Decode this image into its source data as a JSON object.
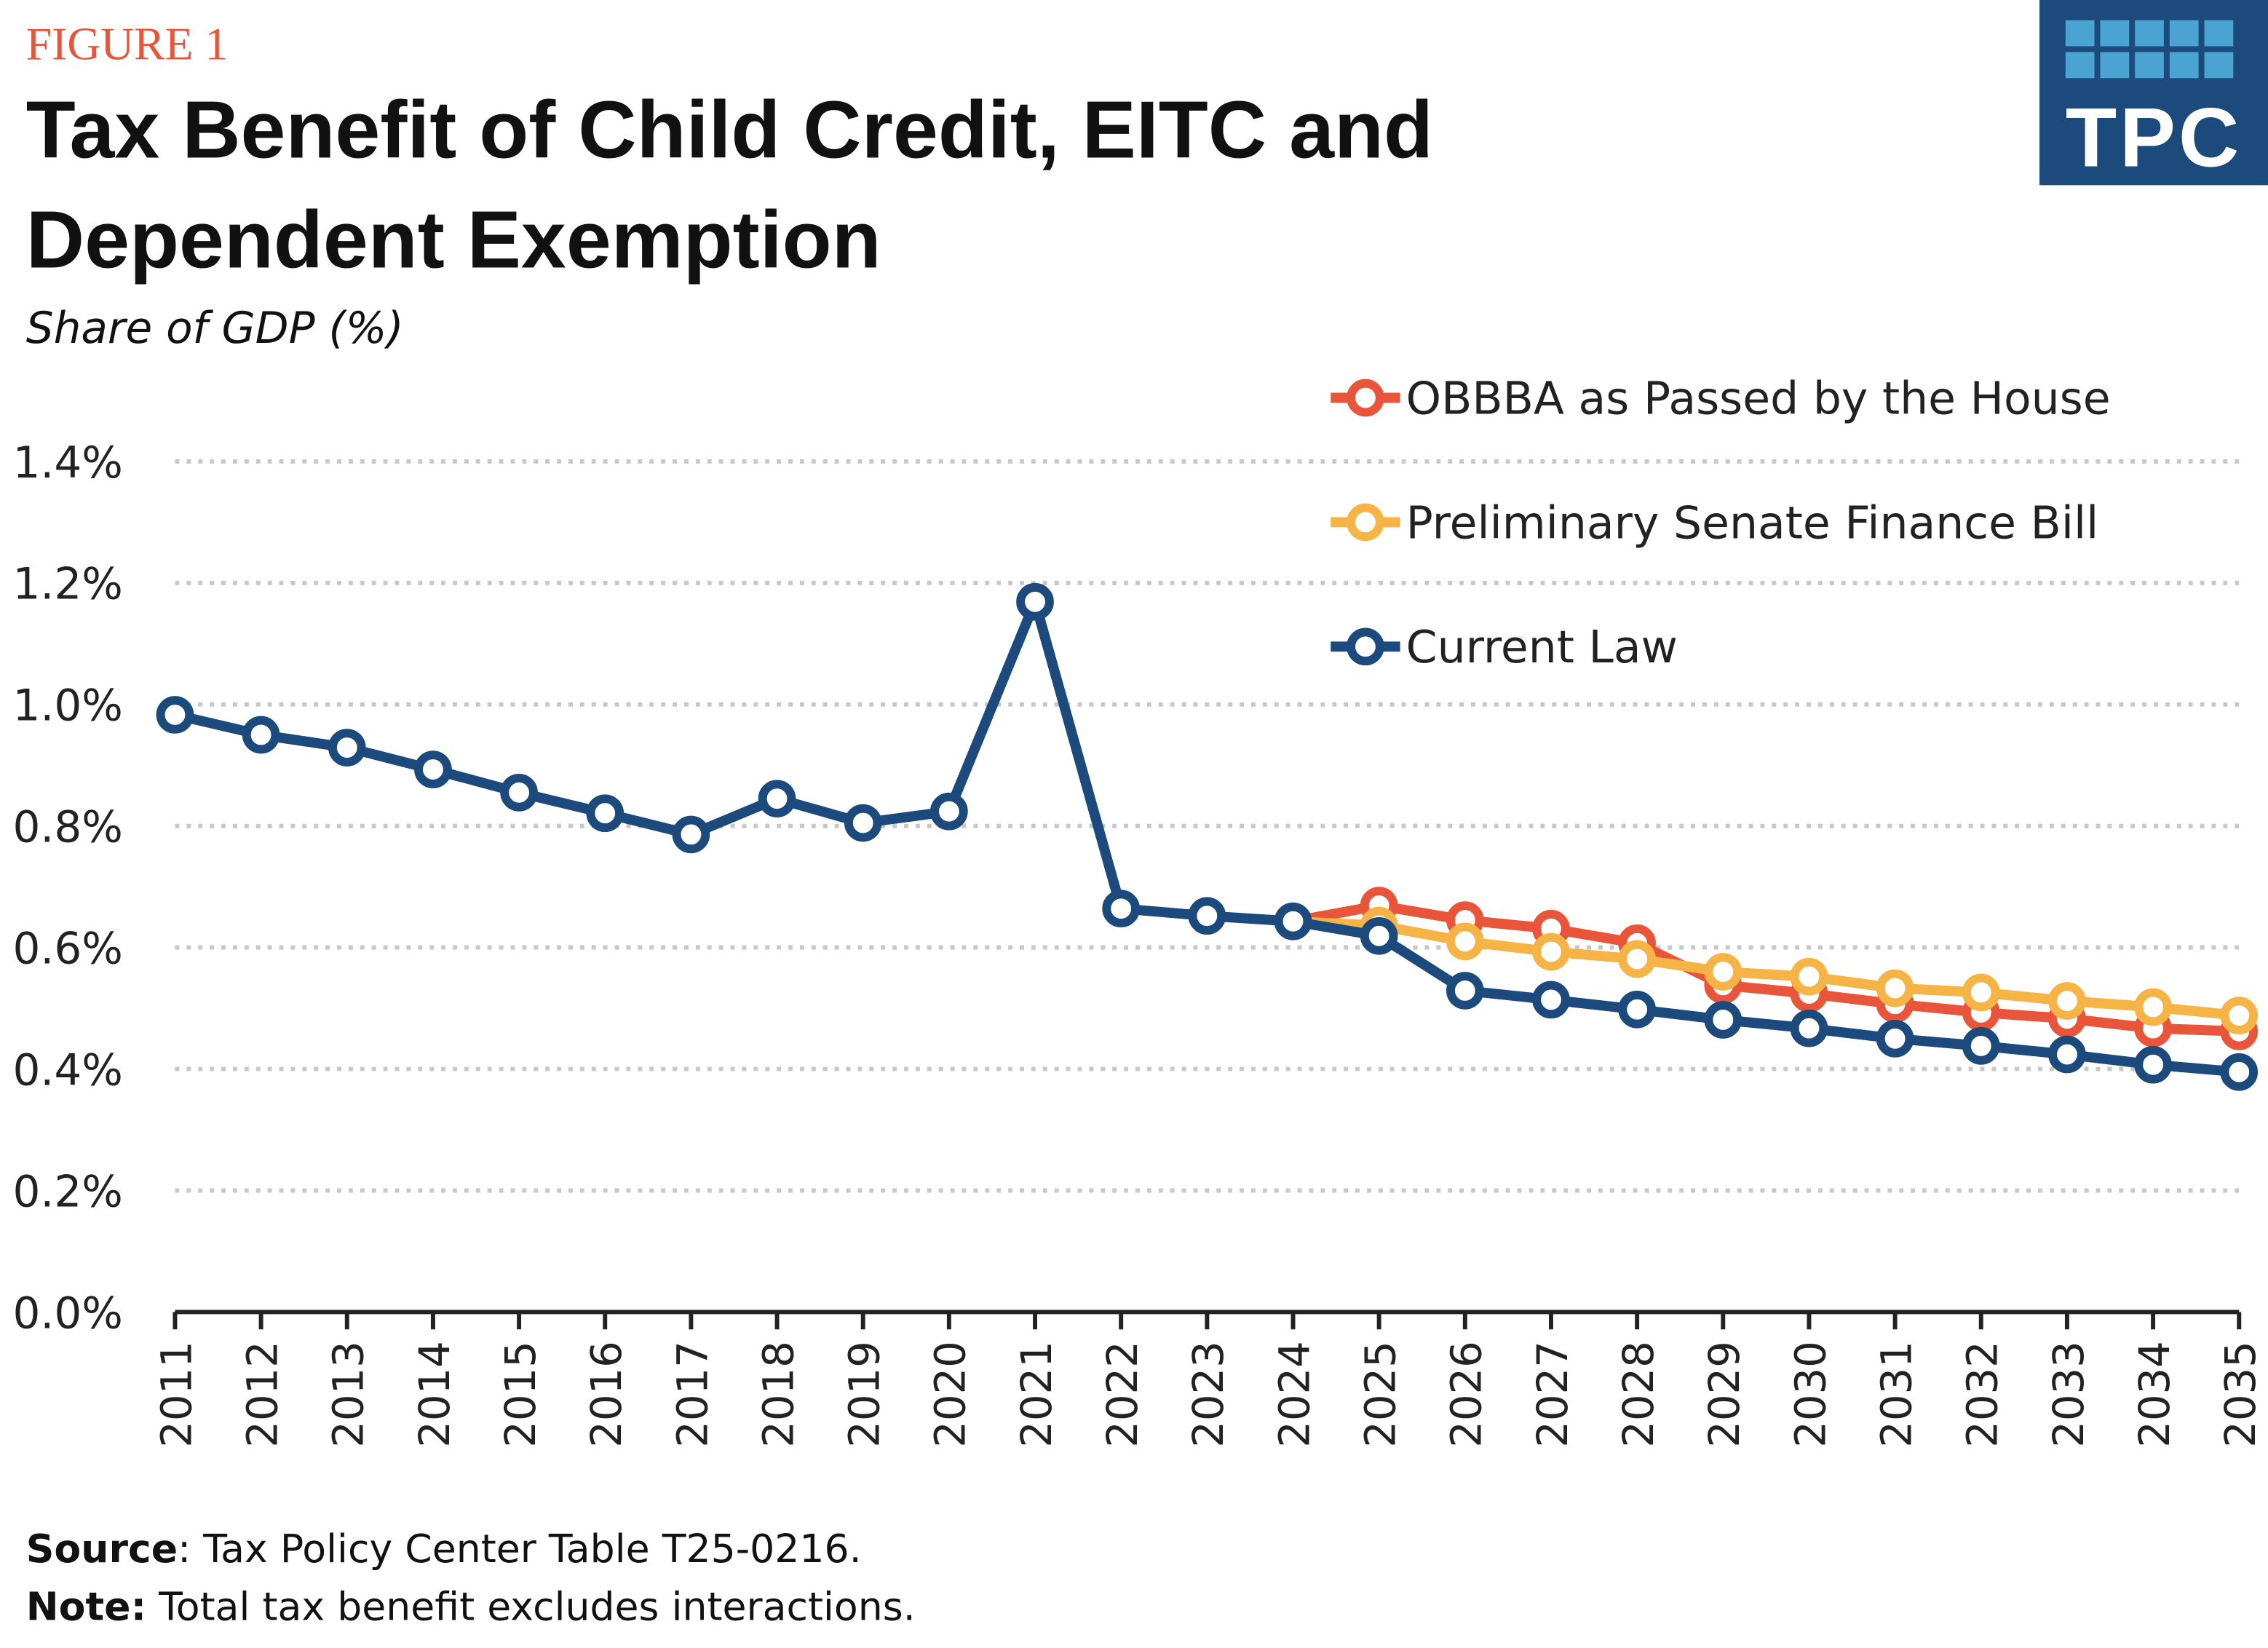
{
  "figure_label": "FIGURE 1",
  "logo": "TPC",
  "notes": [
    {
      "label": "Source",
      "text": ": Tax Policy Center Table T25-0216."
    },
    {
      "label": "Note:",
      "text": "Total tax benefit excludes interactions."
    }
  ],
  "chart_data": {
    "type": "line",
    "title": "Tax Benefit of Child Credit, EITC and Dependent Exemption",
    "subtitle": "Share of GDP (%)",
    "categories": [
      "2011",
      "2012",
      "2013",
      "2014",
      "2015",
      "2016",
      "2017",
      "2018",
      "2019",
      "2020",
      "2021",
      "2022",
      "2023",
      "2024",
      "2025",
      "2026",
      "2027",
      "2028",
      "2029",
      "2030",
      "2031",
      "2032",
      "2033",
      "2034",
      "2035"
    ],
    "series": [
      {
        "name": "OBBBA as Passed by the House",
        "color": "#e8553a",
        "values": [
          null,
          null,
          null,
          null,
          null,
          null,
          null,
          null,
          null,
          null,
          null,
          null,
          null,
          0.643,
          0.669,
          0.645,
          0.631,
          0.607,
          0.538,
          0.524,
          0.507,
          0.493,
          0.483,
          0.467,
          0.462
        ]
      },
      {
        "name": "Preliminary Senate Finance Bill",
        "color": "#f7b446",
        "values": [
          null,
          null,
          null,
          null,
          null,
          null,
          null,
          null,
          null,
          null,
          null,
          null,
          null,
          0.643,
          0.636,
          0.61,
          0.593,
          0.581,
          0.56,
          0.552,
          0.533,
          0.526,
          0.512,
          0.502,
          0.488
        ]
      },
      {
        "name": "Current Law",
        "color": "#1c4a7c",
        "values": [
          0.983,
          0.95,
          0.929,
          0.893,
          0.855,
          0.821,
          0.786,
          0.845,
          0.805,
          0.824,
          1.169,
          0.664,
          0.652,
          0.643,
          0.619,
          0.529,
          0.514,
          0.498,
          0.481,
          0.467,
          0.45,
          0.438,
          0.424,
          0.407,
          0.395
        ]
      }
    ],
    "ylim": [
      0,
      1.4
    ],
    "yticks": [
      {
        "value": 0,
        "label": "0.0%"
      },
      {
        "value": 0.2,
        "label": "0.2%"
      },
      {
        "value": 0.4,
        "label": "0.4%"
      },
      {
        "value": 0.6,
        "label": "0.6%"
      },
      {
        "value": 0.8,
        "label": "0.8%"
      },
      {
        "value": 1.0,
        "label": "1.0%"
      },
      {
        "value": 1.2,
        "label": "1.2%"
      },
      {
        "value": 1.4,
        "label": "1.4%"
      }
    ],
    "grid": true,
    "legend": "top-right"
  }
}
